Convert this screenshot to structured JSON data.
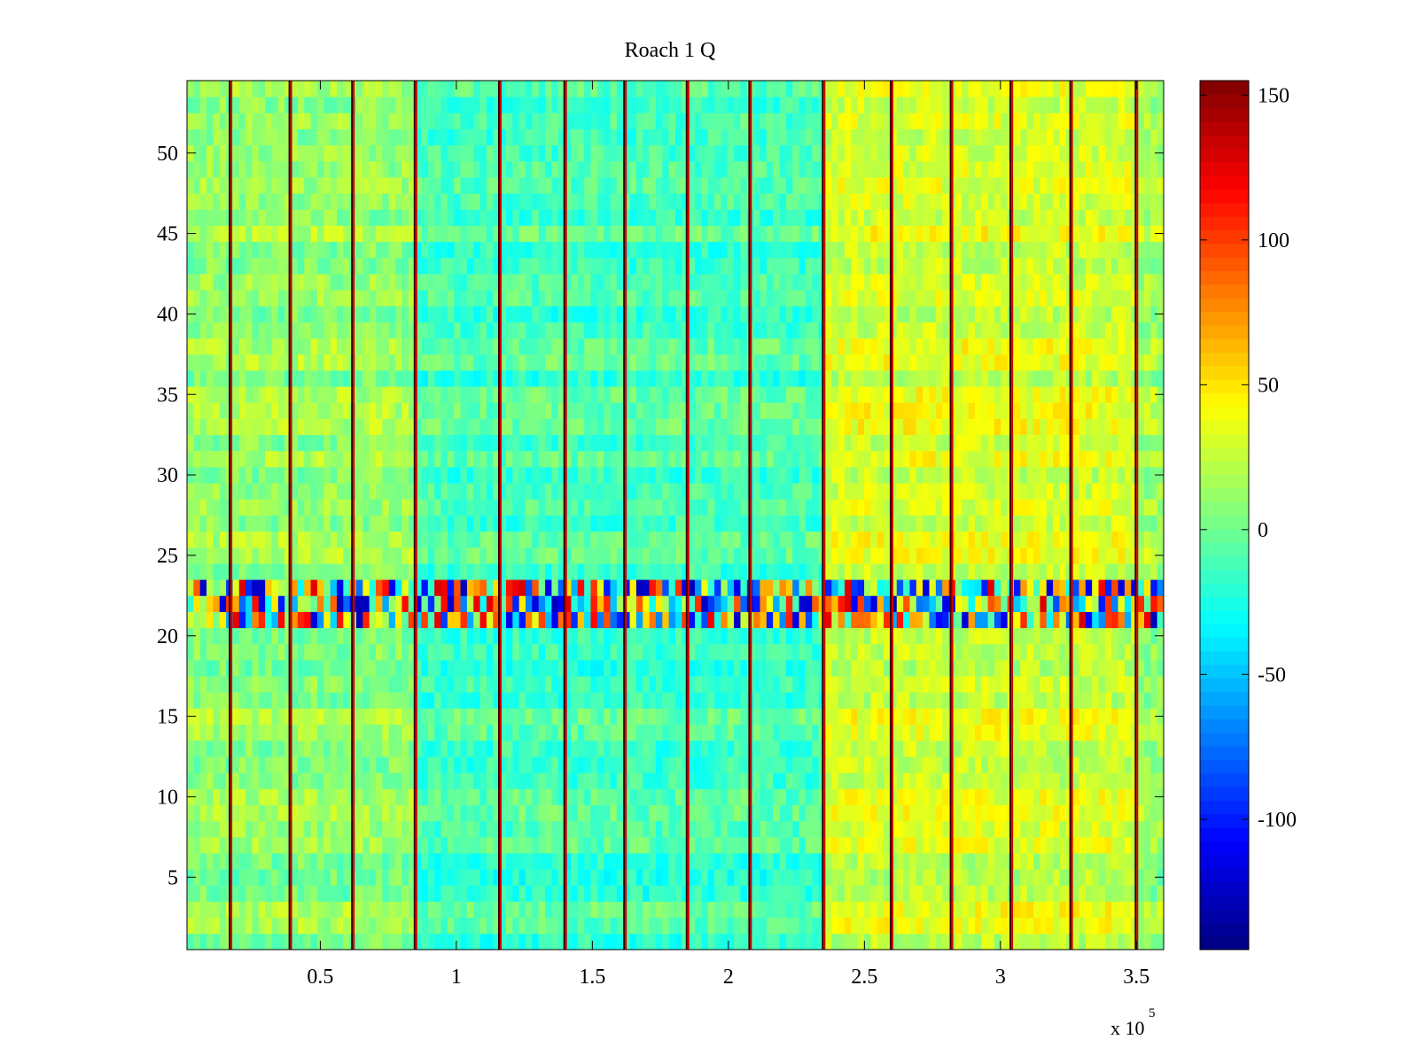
{
  "chart_data": {
    "type": "heatmap",
    "title": "Roach 1 Q",
    "xlabel": "",
    "ylabel": "",
    "x_exponent_label": "x 10",
    "x_exponent_power": "5",
    "xlim": [
      0.01,
      3.6
    ],
    "ylim": [
      0.5,
      54.5
    ],
    "x_ticks": [
      0.5,
      1,
      1.5,
      2,
      2.5,
      3,
      3.5
    ],
    "x_tick_labels": [
      "0.5",
      "1",
      "1.5",
      "2",
      "2.5",
      "3",
      "3.5"
    ],
    "y_ticks": [
      5,
      10,
      15,
      20,
      25,
      30,
      35,
      40,
      45,
      50
    ],
    "y_tick_labels": [
      "5",
      "10",
      "15",
      "20",
      "25",
      "30",
      "35",
      "40",
      "45",
      "50"
    ],
    "rows": 54,
    "colormap": "jet",
    "colorbar": {
      "clim": [
        -145,
        155
      ],
      "ticks": [
        -100,
        -50,
        0,
        50,
        100,
        150
      ],
      "tick_labels": [
        "-100",
        "-50",
        "0",
        "50",
        "100",
        "150"
      ]
    },
    "vertical_stripe_positions": [
      0.17,
      0.39,
      0.62,
      0.85,
      1.16,
      1.4,
      1.62,
      1.85,
      2.08,
      2.35,
      2.6,
      2.82,
      3.04,
      3.26,
      3.5
    ],
    "column_bands": [
      {
        "x_range": [
          0.01,
          0.85
        ],
        "mean_level": 10
      },
      {
        "x_range": [
          0.85,
          2.35
        ],
        "mean_level": -12
      },
      {
        "x_range": [
          2.35,
          3.5
        ],
        "mean_level": 30
      },
      {
        "x_range": [
          3.5,
          3.6
        ],
        "mean_level": 15
      }
    ],
    "noisy_rows": [
      21,
      22,
      23
    ],
    "colors": {
      "stripe_red": "#d00000",
      "stripe_dark": "#3a0000",
      "axes": "#000000"
    }
  }
}
